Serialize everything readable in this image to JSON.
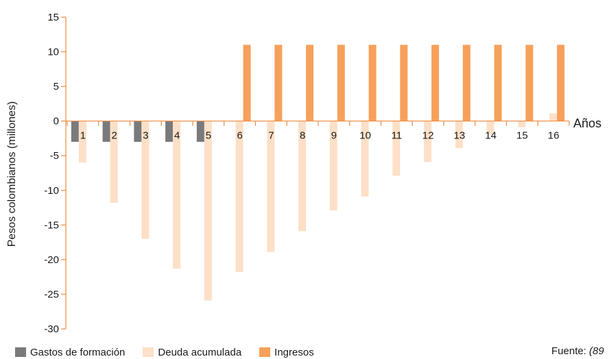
{
  "chart_data": {
    "type": "bar",
    "ylabel": "Pesos colombianos (millones)",
    "xlabel": "Años",
    "ylim": [
      -30,
      15
    ],
    "yticks": [
      15,
      10,
      5,
      0,
      -5,
      -10,
      -15,
      -20,
      -25,
      -30
    ],
    "categories": [
      "1",
      "2",
      "3",
      "4",
      "5",
      "6",
      "7",
      "8",
      "9",
      "10",
      "11",
      "12",
      "13",
      "14",
      "15",
      "16"
    ],
    "series": [
      {
        "name": "Gastos de formación",
        "color": "#7a7a7c",
        "values": [
          -3,
          -3,
          -3,
          -3,
          -3,
          0,
          0,
          0,
          0,
          0,
          0,
          0,
          0,
          0,
          0,
          0
        ]
      },
      {
        "name": "Deuda acumulada",
        "color": "#fde0c7",
        "values": [
          -6,
          -11.8,
          -17,
          -21.3,
          -25.9,
          -21.8,
          -18.9,
          -15.9,
          -12.9,
          -10.9,
          -7.9,
          -5.9,
          -3.9,
          -1.9,
          -0.9,
          1.1
        ]
      },
      {
        "name": "Ingresos",
        "color": "#f7a05b",
        "values": [
          0,
          0,
          0,
          0,
          0,
          11,
          11,
          11,
          11,
          11,
          11,
          11,
          11,
          11,
          11,
          11
        ]
      }
    ],
    "axis_color": "#f08a3c",
    "grid": false,
    "legend_position": "bottom"
  },
  "source": {
    "label": "Fuente:",
    "ref": "(89"
  }
}
